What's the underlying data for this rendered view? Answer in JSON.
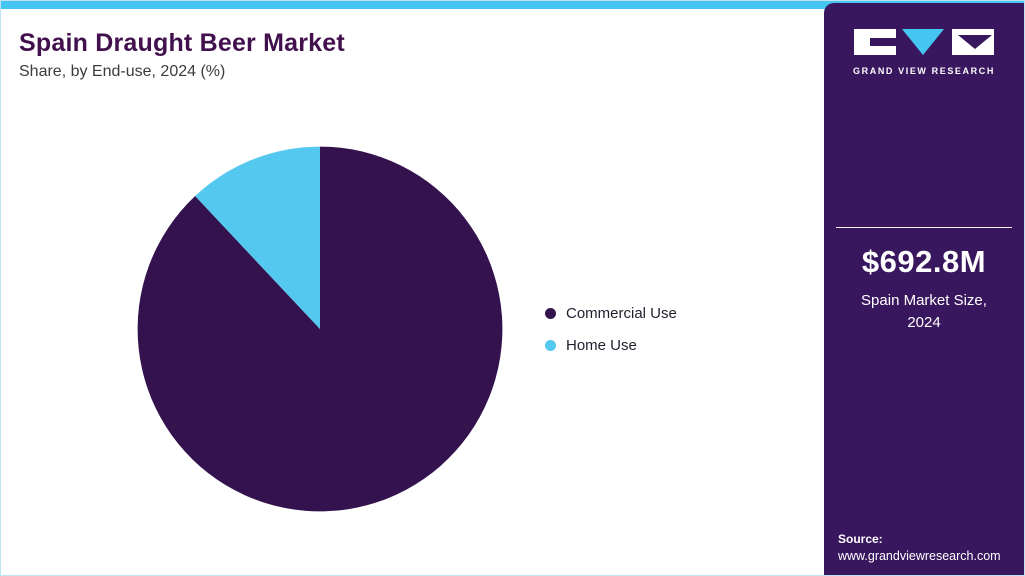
{
  "header": {
    "title": "Spain Draught Beer Market",
    "subtitle": "Share, by End-use, 2024 (%)"
  },
  "chart_data": {
    "type": "pie",
    "title": "Spain Draught Beer Market Share, by End-use, 2024 (%)",
    "categories": [
      "Commercial Use",
      "Home Use"
    ],
    "values": [
      88,
      12
    ],
    "colors": [
      "#33124e",
      "#55c8f0"
    ],
    "start_angle_deg": -90,
    "direction": "clockwise",
    "legend_position": "right"
  },
  "sidebar": {
    "brand": "GRAND VIEW RESEARCH",
    "market_size_value": "$692.8M",
    "market_size_label_line1": "Spain Market Size,",
    "market_size_label_line2": "2024",
    "source_label": "Source:",
    "source_url": "www.grandviewresearch.com"
  },
  "colors": {
    "top_bar": "#45c6f1",
    "sidebar_bg": "#39175e",
    "title": "#42104d",
    "pie_primary": "#33124e",
    "pie_secondary": "#55c8f0"
  }
}
